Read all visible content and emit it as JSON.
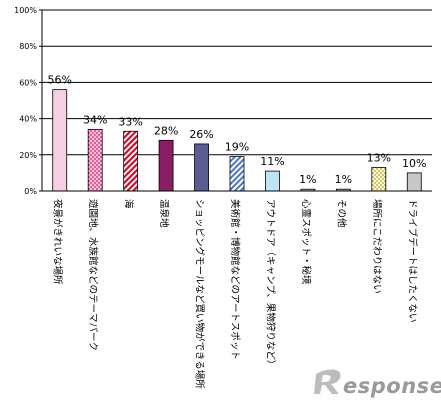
{
  "chart_data": {
    "type": "bar",
    "categories": [
      "夜景がきれいな場所",
      "遊園地、水族館などのテーマパーク",
      "海",
      "温泉地",
      "ショッピングモールなど買い物ができる場所",
      "美術館・博物館などのアートスポット",
      "アウトドア（キャンプ、果物狩りなど）",
      "心霊スポット・秘境",
      "その他",
      "場所にこだわりはない",
      "ドライブデートはしたくない"
    ],
    "values": [
      56,
      34,
      33,
      28,
      26,
      19,
      11,
      1,
      1,
      13,
      10
    ],
    "value_labels": [
      "56%",
      "34%",
      "33%",
      "28%",
      "26%",
      "19%",
      "11%",
      "1%",
      "1%",
      "13%",
      "10%"
    ],
    "ylim": [
      0,
      100
    ],
    "yticks": [
      "0%",
      "20%",
      "40%",
      "60%",
      "80%",
      "100%"
    ],
    "ytick_values": [
      0,
      20,
      40,
      60,
      80,
      100
    ],
    "grid": true,
    "legend": "none",
    "bar_styles": [
      {
        "fill": "#f7cfe4",
        "pattern": "none"
      },
      {
        "fill": "#f0a0c0",
        "pattern": "dots-red"
      },
      {
        "fill": "#ffffff",
        "pattern": "diagonal-red"
      },
      {
        "fill": "#8a1e66",
        "pattern": "none"
      },
      {
        "fill": "#5c5c94",
        "pattern": "none"
      },
      {
        "fill": "#ffffff",
        "pattern": "diagonal-blue"
      },
      {
        "fill": "#bfe4f8",
        "pattern": "none"
      },
      {
        "fill": "#b3b3b3",
        "pattern": "none"
      },
      {
        "fill": "#b3b3b3",
        "pattern": "none"
      },
      {
        "fill": "#ffffc4",
        "pattern": "dots-brown"
      },
      {
        "fill": "#c8c8c8",
        "pattern": "none"
      }
    ]
  },
  "watermark": {
    "text": "esponse."
  }
}
